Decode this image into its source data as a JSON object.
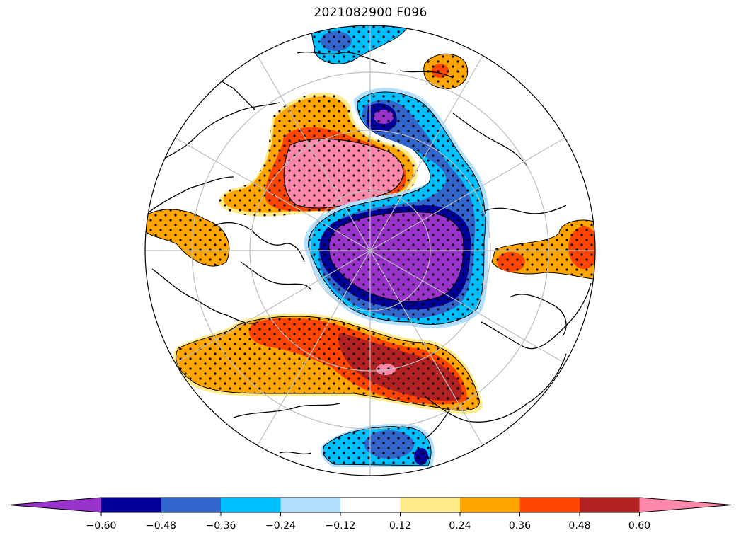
{
  "title": "2021082900 F096",
  "colorbar": {
    "colors": [
      "#9933cc",
      "#000099",
      "#3366cc",
      "#00bfff",
      "#b3e0ff",
      "#ffffff",
      "#ffeb8c",
      "#ffa500",
      "#ff4500",
      "#b22222",
      "#ff88aa"
    ],
    "tick_labels": [
      "−0.60",
      "−0.48",
      "−0.36",
      "−0.24",
      "−0.12",
      "0.12",
      "0.24",
      "0.36",
      "0.48",
      "0.60"
    ],
    "extend": "both"
  },
  "map": {
    "projection": "north-polar-stereographic",
    "stippling": "significance",
    "ocean_color": "#ffffff",
    "coastline_color": "#000000",
    "gridline_color": "#c0c0c0"
  }
}
